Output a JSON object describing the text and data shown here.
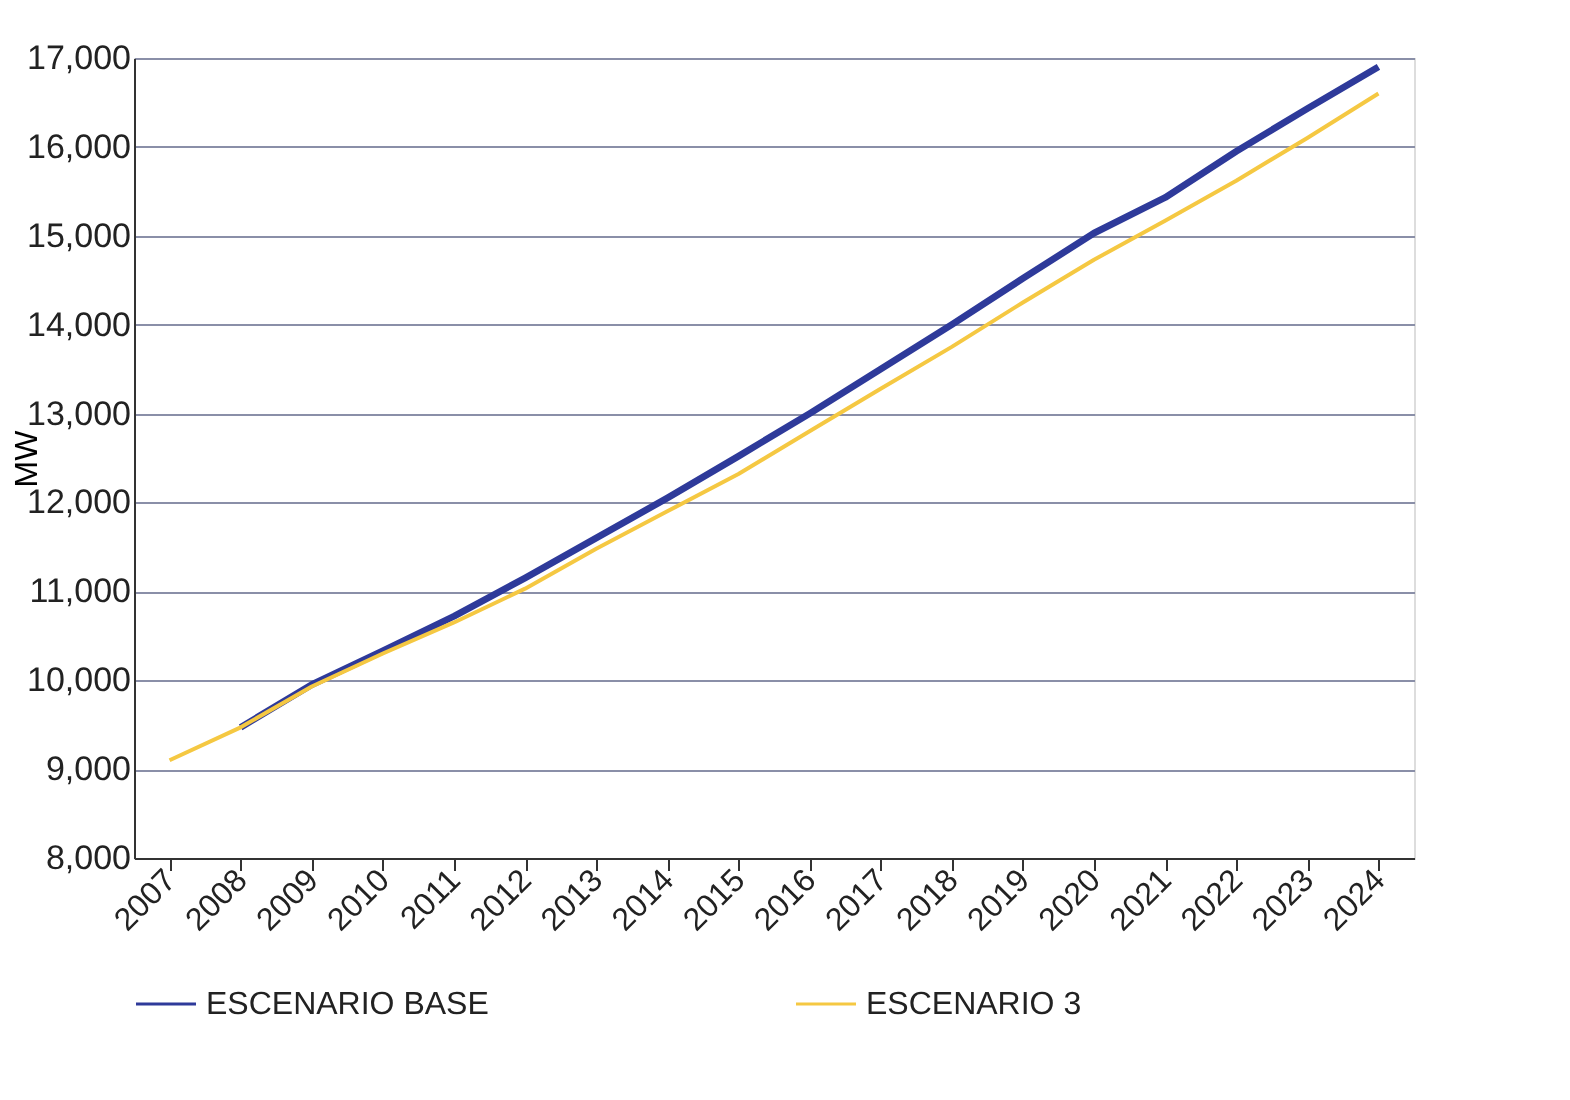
{
  "chart_data": {
    "type": "line",
    "ylabel": "MW",
    "categories": [
      "2007",
      "2008",
      "2009",
      "2010",
      "2011",
      "2012",
      "2013",
      "2014",
      "2015",
      "2016",
      "2017",
      "2018",
      "2019",
      "2020",
      "2021",
      "2022",
      "2023",
      "2024"
    ],
    "series": [
      {
        "name": "ESCENARIO BASE",
        "color": "#2e3a9a",
        "values": [
          null,
          9470,
          9950,
          10330,
          10720,
          11150,
          11600,
          12050,
          12520,
          13000,
          13500,
          14000,
          14520,
          15030,
          15430,
          15950,
          16430,
          16900
        ]
      },
      {
        "name": "ESCENARIO 3",
        "color": "#f5c842",
        "values": [
          9100,
          9470,
          9930,
          10300,
          10650,
          11030,
          11480,
          11900,
          12320,
          12800,
          13280,
          13750,
          14250,
          14730,
          15170,
          15620,
          16100,
          16600
        ]
      }
    ],
    "ylim": [
      8000,
      17000
    ],
    "yticks": [
      {
        "value": 8000,
        "label": "8,000"
      },
      {
        "value": 9000,
        "label": "9,000"
      },
      {
        "value": 10000,
        "label": "10,000"
      },
      {
        "value": 11000,
        "label": "11,000"
      },
      {
        "value": 12000,
        "label": "12,000"
      },
      {
        "value": 13000,
        "label": "13,000"
      },
      {
        "value": 14000,
        "label": "14,000"
      },
      {
        "value": 15000,
        "label": "15,000"
      },
      {
        "value": 16000,
        "label": "16,000"
      },
      {
        "value": 17000,
        "label": "17,000"
      }
    ],
    "grid": "y",
    "legend": "bottom",
    "marker": "none",
    "line_style": "solid"
  }
}
